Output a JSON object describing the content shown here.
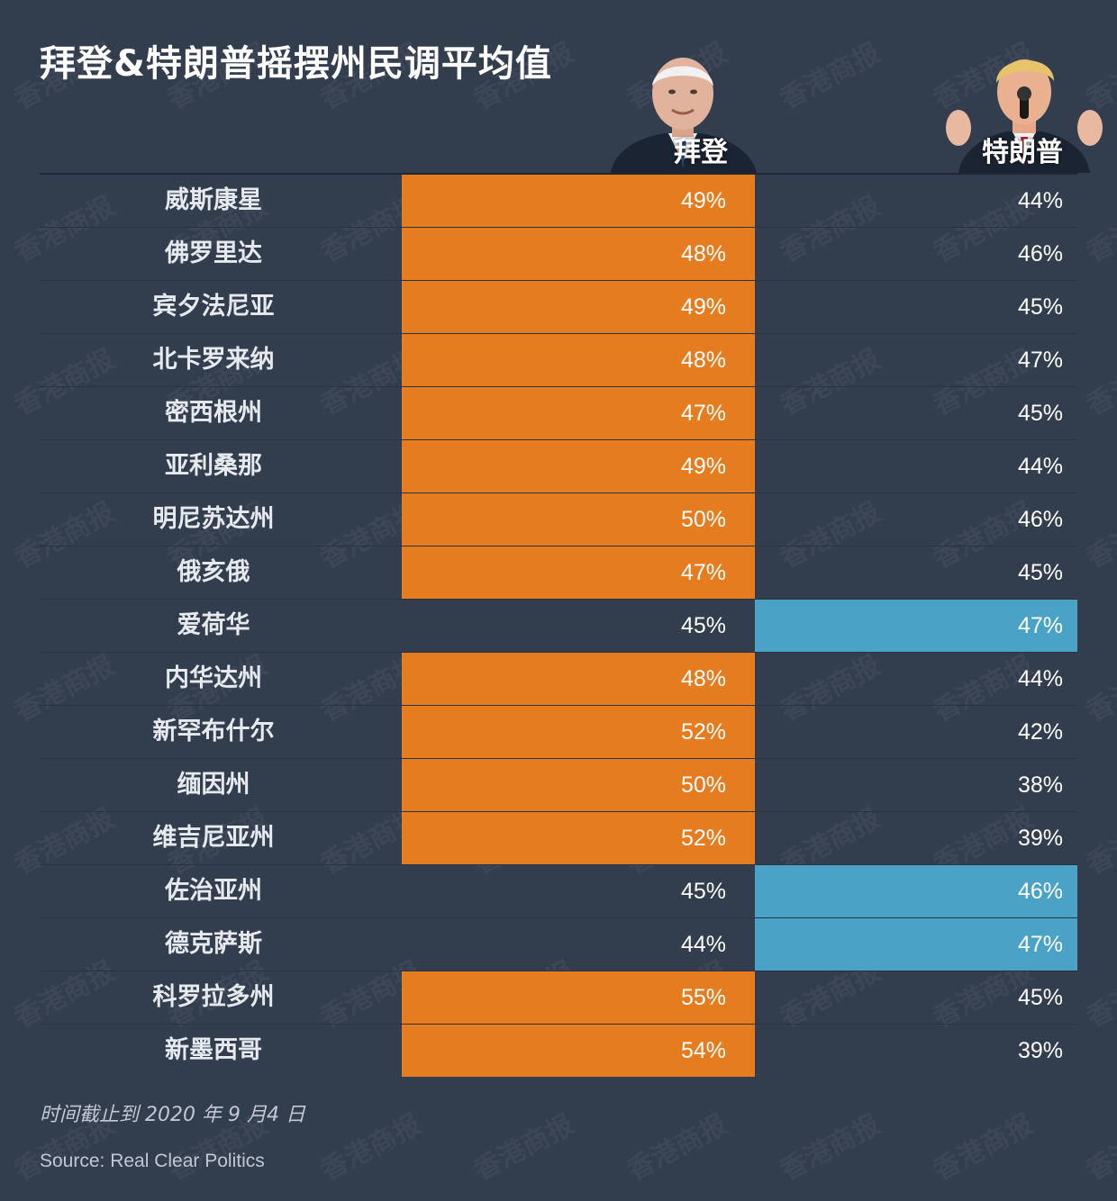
{
  "title": "拜登&特朗普摇摆州民调平均值",
  "candidates": {
    "biden": {
      "label": "拜登",
      "color": "#e57c20"
    },
    "trump": {
      "label": "特朗普",
      "color": "#4aa3c7"
    }
  },
  "chart_data": {
    "type": "table",
    "title": "拜登&特朗普摇摆州民调平均值",
    "columns": [
      "",
      "拜登",
      "特朗普"
    ],
    "rows": [
      {
        "state": "威斯康星",
        "biden": "49%",
        "trump": "44%",
        "leader": "biden"
      },
      {
        "state": "佛罗里达",
        "biden": "48%",
        "trump": "46%",
        "leader": "biden"
      },
      {
        "state": "宾夕法尼亚",
        "biden": "49%",
        "trump": "45%",
        "leader": "biden"
      },
      {
        "state": "北卡罗来纳",
        "biden": "48%",
        "trump": "47%",
        "leader": "biden"
      },
      {
        "state": "密西根州",
        "biden": "47%",
        "trump": "45%",
        "leader": "biden"
      },
      {
        "state": "亚利桑那",
        "biden": "49%",
        "trump": "44%",
        "leader": "biden"
      },
      {
        "state": "明尼苏达州",
        "biden": "50%",
        "trump": "46%",
        "leader": "biden"
      },
      {
        "state": "俄亥俄",
        "biden": "47%",
        "trump": "45%",
        "leader": "biden"
      },
      {
        "state": "爱荷华",
        "biden": "45%",
        "trump": "47%",
        "leader": "trump"
      },
      {
        "state": "内华达州",
        "biden": "48%",
        "trump": "44%",
        "leader": "biden"
      },
      {
        "state": "新罕布什尔",
        "biden": "52%",
        "trump": "42%",
        "leader": "biden"
      },
      {
        "state": "缅因州",
        "biden": "50%",
        "trump": "38%",
        "leader": "biden"
      },
      {
        "state": "维吉尼亚州",
        "biden": "52%",
        "trump": "39%",
        "leader": "biden"
      },
      {
        "state": "佐治亚州",
        "biden": "45%",
        "trump": "46%",
        "leader": "trump"
      },
      {
        "state": "德克萨斯",
        "biden": "44%",
        "trump": "47%",
        "leader": "trump"
      },
      {
        "state": "科罗拉多州",
        "biden": "55%",
        "trump": "45%",
        "leader": "biden"
      },
      {
        "state": "新墨西哥",
        "biden": "54%",
        "trump": "39%",
        "leader": "biden"
      }
    ]
  },
  "footer": {
    "note": "时间截止到 2020 年 9 月4 日",
    "source": "Source: Real Clear Politics"
  },
  "watermark": "香港商报"
}
